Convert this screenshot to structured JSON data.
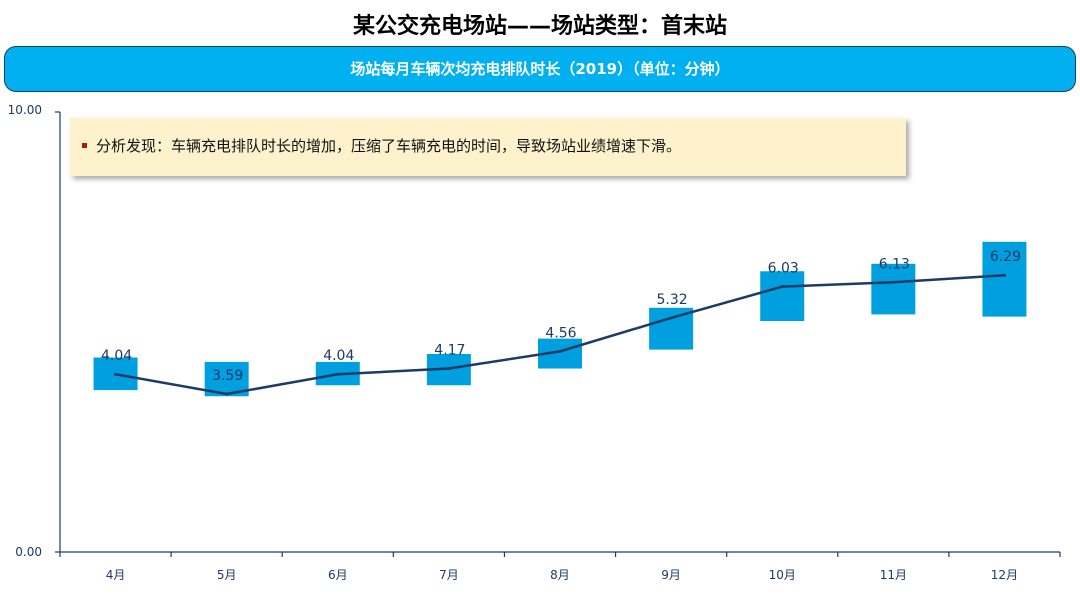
{
  "page": {
    "title": "某公交充电场站——场站类型：首末站",
    "banner": "场站每月车辆次均充电排队时长（2019）（单位：分钟）",
    "note": "分析发现：车辆充电排队时长的增加，压缩了车辆充电的时间，导致场站业绩增速下滑。"
  },
  "colors": {
    "banner": "#00b0f0",
    "box": "#009fe0",
    "line": "#1f3a64",
    "note_bg": "#fdf2cc"
  },
  "chart_data": {
    "type": "line",
    "title": "场站每月车辆次均充电排队时长（2019）（单位：分钟）",
    "categories": [
      "4月",
      "5月",
      "6月",
      "7月",
      "8月",
      "9月",
      "10月",
      "11月",
      "12月"
    ],
    "values": [
      4.04,
      3.59,
      4.04,
      4.17,
      4.56,
      5.32,
      6.03,
      6.13,
      6.29
    ],
    "box_ranges": [
      [
        3.68,
        4.42
      ],
      [
        3.54,
        4.32
      ],
      [
        3.79,
        4.32
      ],
      [
        3.79,
        4.5
      ],
      [
        4.17,
        4.85
      ],
      [
        4.6,
        5.55
      ],
      [
        5.25,
        6.38
      ],
      [
        5.4,
        6.55
      ],
      [
        5.35,
        7.05
      ]
    ],
    "ylim": [
      0,
      10
    ],
    "ytick_labels": [
      "0.00",
      "10.00"
    ],
    "grid": false,
    "legend": "none"
  }
}
